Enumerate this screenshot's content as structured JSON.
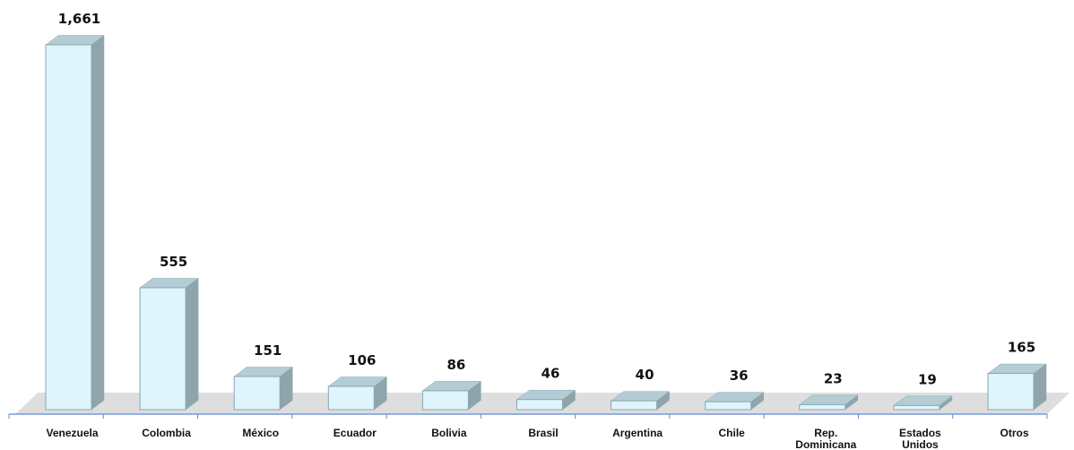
{
  "chart_data": {
    "type": "bar",
    "categories": [
      "Venezuela",
      "Colombia",
      "México",
      "Ecuador",
      "Bolivia",
      "Brasil",
      "Argentina",
      "Chile",
      "Rep. Dominicana",
      "Estados Unidos",
      "Otros"
    ],
    "category_lines": [
      [
        "Venezuela"
      ],
      [
        "Colombia"
      ],
      [
        "México"
      ],
      [
        "Ecuador"
      ],
      [
        "Bolivia"
      ],
      [
        "Brasil"
      ],
      [
        "Argentina"
      ],
      [
        "Chile"
      ],
      [
        "Rep.",
        "Dominicana"
      ],
      [
        "Estados",
        "Unidos"
      ],
      [
        "Otros"
      ]
    ],
    "values": [
      1661,
      555,
      151,
      106,
      86,
      46,
      40,
      36,
      23,
      19,
      165
    ],
    "value_labels": [
      "1,661",
      "555",
      "151",
      "106",
      "86",
      "46",
      "40",
      "36",
      "23",
      "19",
      "165"
    ],
    "ylim": [
      0,
      1661
    ],
    "grid": false,
    "legend": "none",
    "colors": {
      "bar_front": "#dff4fd",
      "bar_side": "#8fa5ab",
      "bar_top": "#b4ccd3",
      "bar_edge": "#87a7b2",
      "floor": "#dedede",
      "axis": "#5b8bd8"
    }
  }
}
